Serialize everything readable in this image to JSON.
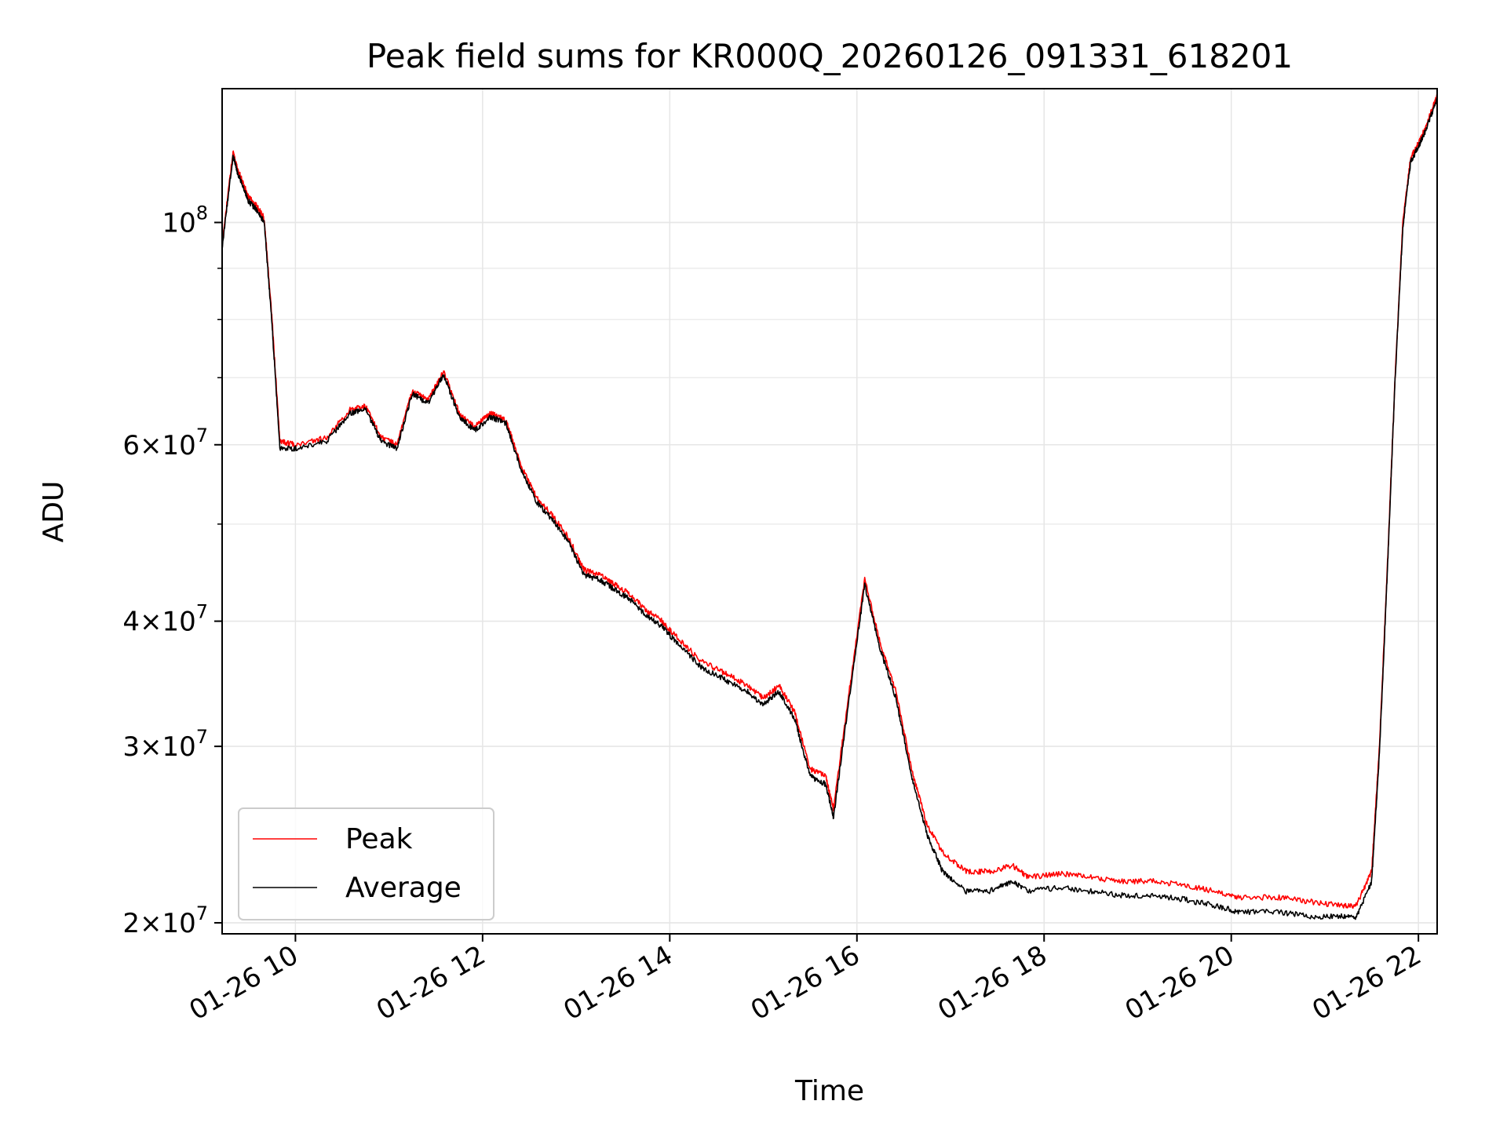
{
  "chart_data": {
    "type": "line",
    "title": "Peak field sums for KR000Q_20260126_091331_618201",
    "xlabel": "Time",
    "ylabel": "ADU",
    "yscale": "log",
    "xlim": [
      "2026-01-26 09:13",
      "2026-01-26 22:12"
    ],
    "ylim": [
      19500000,
      136000000
    ],
    "grid": true,
    "legend": "lower-left",
    "x_ticks": [
      "01-26 10",
      "01-26 12",
      "01-26 14",
      "01-26 16",
      "01-26 18",
      "01-26 20",
      "01-26 22"
    ],
    "y_ticks": [
      {
        "mantissa": "",
        "exponent": "8",
        "value": 100000000
      },
      {
        "mantissa": "6",
        "exponent": "7",
        "value": 60000000
      },
      {
        "mantissa": "4",
        "exponent": "7",
        "value": 40000000
      },
      {
        "mantissa": "3",
        "exponent": "7",
        "value": 30000000
      },
      {
        "mantissa": "2",
        "exponent": "7",
        "value": 20000000
      }
    ],
    "x": [
      "09:13",
      "09:20",
      "09:23",
      "09:30",
      "09:35",
      "09:40",
      "09:45",
      "09:50",
      "10:00",
      "10:20",
      "10:35",
      "10:45",
      "10:55",
      "11:05",
      "11:15",
      "11:25",
      "11:35",
      "11:45",
      "11:55",
      "12:05",
      "12:15",
      "12:25",
      "12:35",
      "12:45",
      "12:55",
      "13:05",
      "13:15",
      "13:25",
      "13:35",
      "13:45",
      "13:55",
      "14:05",
      "14:20",
      "14:35",
      "14:50",
      "15:00",
      "15:10",
      "15:20",
      "15:30",
      "15:40",
      "15:45",
      "15:55",
      "16:05",
      "16:15",
      "16:25",
      "16:35",
      "16:45",
      "16:55",
      "17:10",
      "17:25",
      "17:40",
      "17:50",
      "18:10",
      "18:30",
      "18:50",
      "19:10",
      "19:30",
      "19:50",
      "20:05",
      "20:30",
      "20:50",
      "21:10",
      "21:20",
      "21:30",
      "21:35",
      "21:40",
      "21:45",
      "21:50",
      "21:55",
      "22:00",
      "22:05",
      "22:12"
    ],
    "series": [
      {
        "name": "Peak",
        "color": "#ff0000",
        "values": [
          95500000,
          117500000,
          113000000,
          106000000,
          104000000,
          101000000,
          80000000,
          60500000,
          60000000,
          61000000,
          65000000,
          65500000,
          61000000,
          60000000,
          68000000,
          66500000,
          71000000,
          64500000,
          62500000,
          64500000,
          63500000,
          57000000,
          53000000,
          51000000,
          48500000,
          45000000,
          44500000,
          43500000,
          42500000,
          41000000,
          40000000,
          38500000,
          36500000,
          35500000,
          34500000,
          33500000,
          34500000,
          32500000,
          28500000,
          28000000,
          26000000,
          34000000,
          44000000,
          38000000,
          34000000,
          28500000,
          25000000,
          23500000,
          22500000,
          22500000,
          22800000,
          22200000,
          22400000,
          22200000,
          22000000,
          22000000,
          21800000,
          21500000,
          21200000,
          21200000,
          21000000,
          20800000,
          20800000,
          22500000,
          30000000,
          45000000,
          70000000,
          100000000,
          116000000,
          120000000,
          125000000,
          134000000
        ]
      },
      {
        "name": "Average",
        "color": "#000000",
        "values": [
          94500000,
          116500000,
          112000000,
          105000000,
          103000000,
          100000000,
          79000000,
          59500000,
          59500000,
          60500000,
          64500000,
          65000000,
          60500000,
          59500000,
          67500000,
          66000000,
          70500000,
          64000000,
          62000000,
          64000000,
          63000000,
          56500000,
          52500000,
          50500000,
          48000000,
          44500000,
          44000000,
          43000000,
          42000000,
          40500000,
          39500000,
          38000000,
          36000000,
          35000000,
          34000000,
          33000000,
          34000000,
          32000000,
          28000000,
          27500000,
          25500000,
          33500000,
          43500000,
          37500000,
          33500000,
          28000000,
          24500000,
          22500000,
          21500000,
          21500000,
          22000000,
          21500000,
          21700000,
          21500000,
          21300000,
          21300000,
          21100000,
          20800000,
          20500000,
          20500000,
          20300000,
          20300000,
          20200000,
          22000000,
          29500000,
          44500000,
          69500000,
          99000000,
          115000000,
          119000000,
          124000000,
          133000000
        ]
      }
    ]
  }
}
